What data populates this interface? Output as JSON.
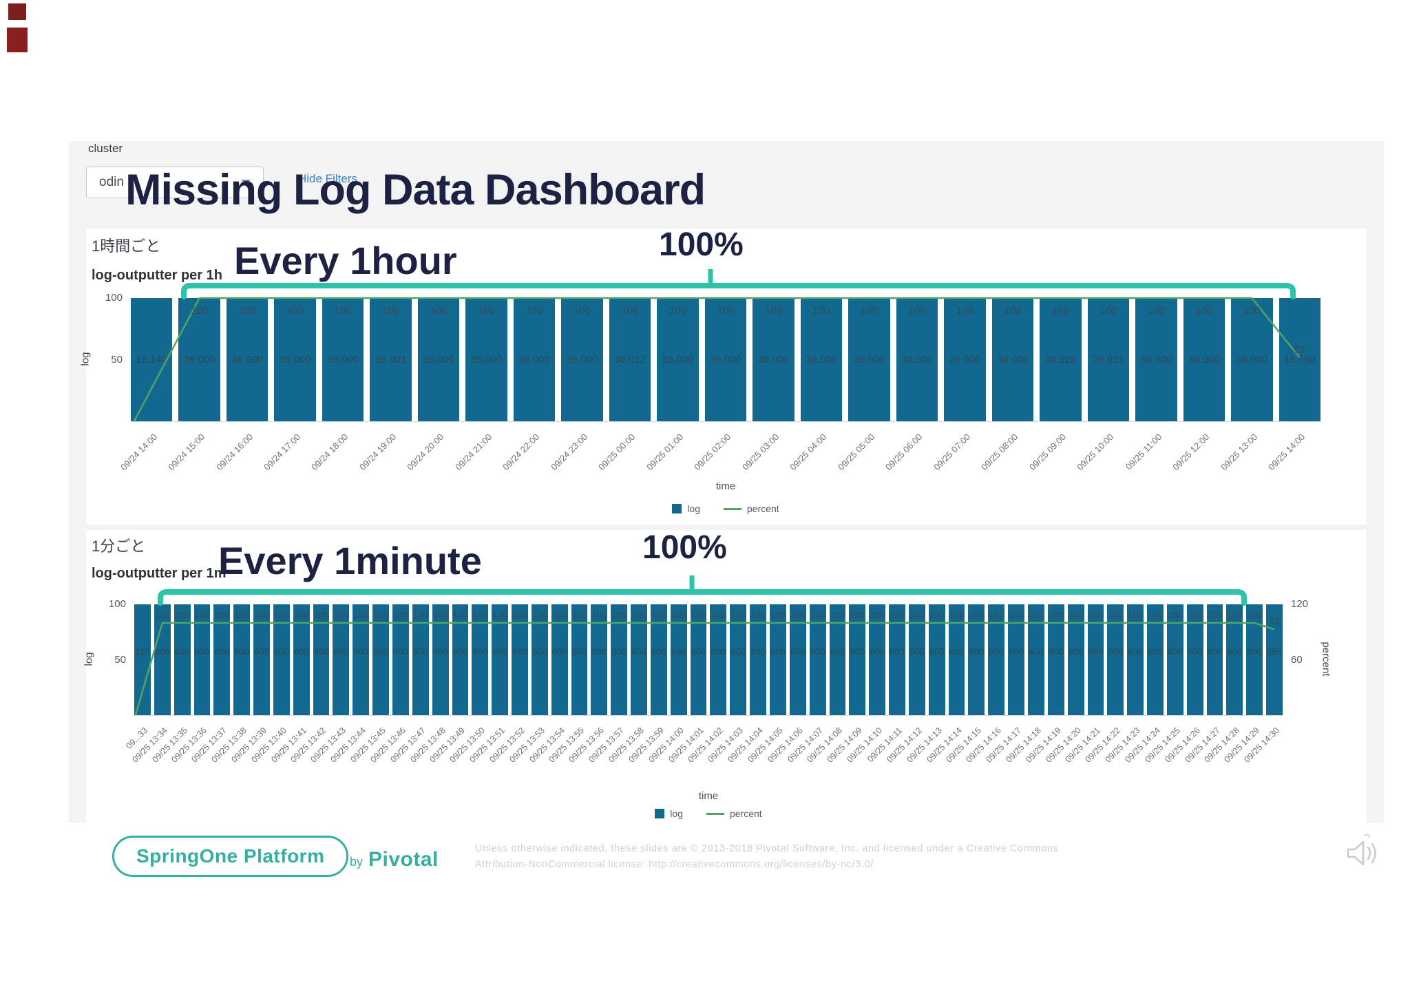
{
  "colors": {
    "bar": "#11698f",
    "percent_line": "#57a163",
    "annotation_teal": "#2bc4a9",
    "title_navy": "#1d2142",
    "link_blue": "#3c82c4"
  },
  "header": {
    "cluster_label": "cluster",
    "cluster_value": "odin",
    "hide_filters_label": "Hide Filters",
    "dashboard_title": "Missing Log Data Dashboard"
  },
  "chart_data": [
    {
      "type": "bar",
      "panel_title_jp": "1時間ごと",
      "title": "log-outputter per 1h",
      "annotation": "Every 1hour",
      "annotation_percent": "100%",
      "xlabel": "time",
      "ylabel_left": "log",
      "ylabel_right": "",
      "yticks_left": [
        "100",
        "50"
      ],
      "yticks_right": [],
      "ylim_left": [
        0,
        100
      ],
      "percent_axis_max": 100,
      "legend": [
        "log",
        "percent"
      ],
      "categories": [
        "09/24 14:00",
        "09/24 15:00",
        "09/24 16:00",
        "09/24 17:00",
        "09/24 18:00",
        "09/24 19:00",
        "09/24 20:00",
        "09/24 21:00",
        "09/24 22:00",
        "09/24 23:00",
        "09/25 00:00",
        "09/25 01:00",
        "09/25 02:00",
        "09/25 03:00",
        "09/25 04:00",
        "09/25 05:00",
        "09/25 06:00",
        "09/25 07:00",
        "09/25 08:00",
        "09/25 09:00",
        "09/25 10:00",
        "09/25 11:00",
        "09/25 12:00",
        "09/25 13:00",
        "09/25 14:00"
      ],
      "series": [
        {
          "name": "log",
          "type": "bar",
          "values": [
            15140,
            36000,
            36000,
            36000,
            36000,
            36001,
            36000,
            36000,
            36000,
            36000,
            36012,
            36000,
            36000,
            36000,
            36000,
            36000,
            36000,
            36000,
            36000,
            36026,
            36021,
            36000,
            36000,
            36000,
            18550
          ]
        },
        {
          "name": "percent",
          "type": "line",
          "values": [
            42,
            100,
            100,
            100,
            100,
            100,
            100,
            100,
            100,
            100,
            100,
            100,
            100,
            100,
            100,
            100,
            100,
            100,
            100,
            100,
            100,
            100,
            100,
            100,
            52
          ]
        }
      ]
    },
    {
      "type": "bar",
      "panel_title_jp": "1分ごと",
      "title": "log-outputter per 1m",
      "annotation": "Every 1minute",
      "annotation_percent": "100%",
      "xlabel": "time",
      "ylabel_left": "log",
      "ylabel_right": "percent",
      "yticks_left": [
        "100",
        "50"
      ],
      "yticks_right": [
        "120",
        "60"
      ],
      "ylim_left": [
        0,
        100
      ],
      "percent_axis_max": 120,
      "legend": [
        "log",
        "percent"
      ],
      "categories": [
        "09...33",
        "09/25 13:34",
        "09/25 13:35",
        "09/25 13:36",
        "09/25 13:37",
        "09/25 13:38",
        "09/25 13:39",
        "09/25 13:40",
        "09/25 13:41",
        "09/25 13:42",
        "09/25 13:43",
        "09/25 13:44",
        "09/25 13:45",
        "09/25 13:46",
        "09/25 13:47",
        "09/25 13:48",
        "09/25 13:49",
        "09/25 13:50",
        "09/25 13:51",
        "09/25 13:52",
        "09/25 13:53",
        "09/25 13:54",
        "09/25 13:55",
        "09/25 13:56",
        "09/25 13:57",
        "09/25 13:58",
        "09/25 13:59",
        "09/25 14:00",
        "09/25 14:01",
        "09/25 14:02",
        "09/25 14:03",
        "09/25 14:04",
        "09/25 14:05",
        "09/25 14:06",
        "09/25 14:07",
        "09/25 14:08",
        "09/25 14:09",
        "09/25 14:10",
        "09/25 14:11",
        "09/25 14:12",
        "09/25 14:13",
        "09/25 14:14",
        "09/25 14:15",
        "09/25 14:16",
        "09/25 14:17",
        "09/25 14:18",
        "09/25 14:19",
        "09/25 14:20",
        "09/25 14:21",
        "09/25 14:22",
        "09/25 14:23",
        "09/25 14:24",
        "09/25 14:25",
        "09/25 14:26",
        "09/25 14:27",
        "09/25 14:28",
        "09/25 14:29",
        "09/25 14:30"
      ],
      "series": [
        {
          "name": "log",
          "type": "bar",
          "values": [
            110,
            600,
            600,
            600,
            600,
            600,
            600,
            600,
            600,
            600,
            600,
            600,
            600,
            600,
            600,
            600,
            600,
            600,
            600,
            600,
            600,
            600,
            600,
            600,
            600,
            600,
            600,
            600,
            600,
            600,
            600,
            600,
            600,
            600,
            600,
            600,
            600,
            600,
            600,
            600,
            600,
            600,
            600,
            600,
            600,
            600,
            600,
            600,
            600,
            600,
            600,
            600,
            600,
            600,
            600,
            600,
            600,
            556
          ]
        },
        {
          "name": "percent",
          "type": "line",
          "values": [
            18,
            100,
            100,
            100,
            100,
            100,
            100,
            100,
            100,
            100,
            100,
            100,
            100,
            100,
            100,
            100,
            100,
            100,
            100,
            100,
            100,
            100,
            100,
            100,
            100,
            100,
            100,
            100,
            100,
            100,
            100,
            100,
            100,
            100,
            100,
            100,
            100,
            100,
            100,
            100,
            100,
            100,
            100,
            100,
            100,
            100,
            100,
            100,
            100,
            100,
            100,
            100,
            100,
            100,
            100,
            100,
            100,
            93
          ]
        }
      ]
    }
  ],
  "footer": {
    "logo_text": "SpringOne Platform",
    "by_label": "by",
    "brand": "Pivotal",
    "license_line1": "Unless otherwise indicated, these slides are © 2013-2018 Pivotal Software, Inc. and licensed under a Creative Commons",
    "license_line2": "Attribution-NonCommercial license: http://creativecommons.org/licenses/by-nc/3.0/"
  }
}
